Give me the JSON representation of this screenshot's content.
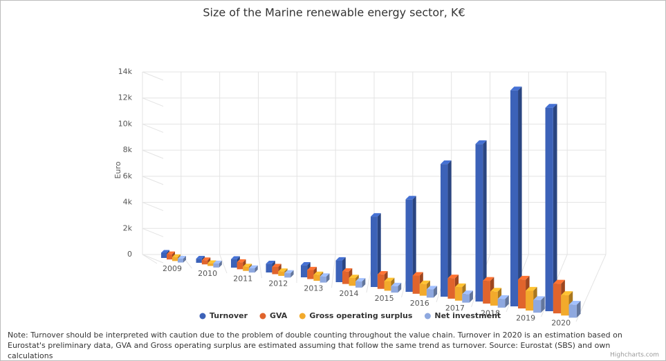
{
  "chart_data": {
    "type": "bar3d",
    "title": "Size of the Marine renewable energy sector, K€",
    "y_label": "Euro",
    "categories": [
      "2009",
      "2010",
      "2011",
      "2012",
      "2013",
      "2014",
      "2015",
      "2016",
      "2017",
      "2018",
      "2019",
      "2020"
    ],
    "series": [
      {
        "name": "Turnover",
        "color": "#3c62b8",
        "values": [
          400,
          300,
          600,
          600,
          800,
          1400,
          4400,
          5600,
          7800,
          9000,
          12000,
          11000
        ]
      },
      {
        "name": "GVA",
        "color": "#e0642c",
        "values": [
          400,
          300,
          500,
          500,
          600,
          800,
          900,
          1100,
          1200,
          1300,
          1600,
          1600
        ]
      },
      {
        "name": "Gross operating surplus",
        "color": "#f2aa2c",
        "values": [
          300,
          200,
          300,
          300,
          400,
          500,
          600,
          700,
          800,
          800,
          1100,
          1100
        ]
      },
      {
        "name": "Net investment",
        "color": "#8ea8df",
        "values": [
          300,
          300,
          300,
          300,
          400,
          400,
          400,
          500,
          500,
          500,
          700,
          700
        ]
      }
    ],
    "ylim": [
      0,
      14000
    ],
    "yticks": [
      0,
      {
        "value": 2000,
        "label": "2k"
      },
      {
        "value": 4000,
        "label": "4k"
      },
      {
        "value": 6000,
        "label": "6k"
      },
      {
        "value": 8000,
        "label": "8k"
      },
      {
        "value": 10000,
        "label": "10k"
      },
      {
        "value": 12000,
        "label": "12k"
      },
      {
        "value": 14000,
        "label": "14k"
      }
    ],
    "grid": true,
    "legend": "bottom",
    "note": "Note: Turnover should be interpreted with caution due to the problem of double counting throughout the value chain. Turnover in 2020 is an estimation based on Eurostat's preliminary data, GVA and Gross operating surplus are estimated assuming that follow the same trend as turnover. Source: Eurostat (SBS) and own calculations",
    "credit": "Highcharts.com"
  }
}
